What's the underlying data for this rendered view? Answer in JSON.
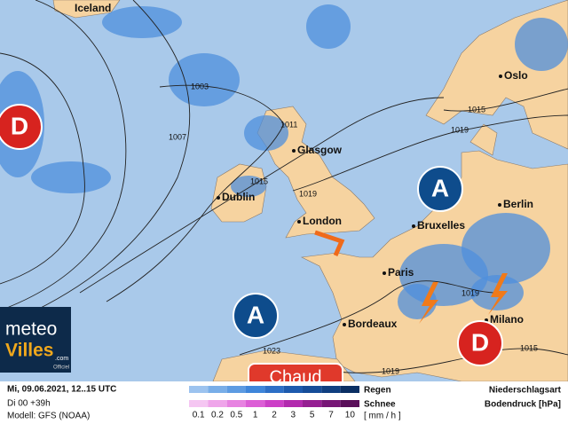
{
  "map": {
    "cities": [
      "Iceland",
      "Oslo",
      "Glasgow",
      "Dublin",
      "London",
      "Bruxelles",
      "Berlin",
      "Paris",
      "Bordeaux",
      "Milano"
    ],
    "isobars": [
      1003,
      1007,
      1011,
      1015,
      1019,
      1019,
      1015,
      1019,
      1023,
      1019,
      1015
    ],
    "centers": [
      "D",
      "A",
      "A",
      "D"
    ],
    "tag": "Chaud"
  },
  "logo": {
    "line1": "meteo",
    "line2": "Villes",
    "domain": ".com",
    "badge": "Officiel"
  },
  "footer": {
    "datetime": "Mi, 09.06.2021, 12..15 UTC",
    "lead": "Di 00 +39h",
    "model": "Modell: GFS (NOAA)"
  },
  "legend": {
    "rain": "Regen",
    "snow": "Schnee",
    "unit": "[ mm / h ]",
    "scale": [
      0.1,
      0.2,
      0.5,
      1,
      2,
      3,
      5,
      7,
      10
    ],
    "type_label": "Niederschlagsart",
    "pressure_label": "Bodendruck [hPa]"
  }
}
